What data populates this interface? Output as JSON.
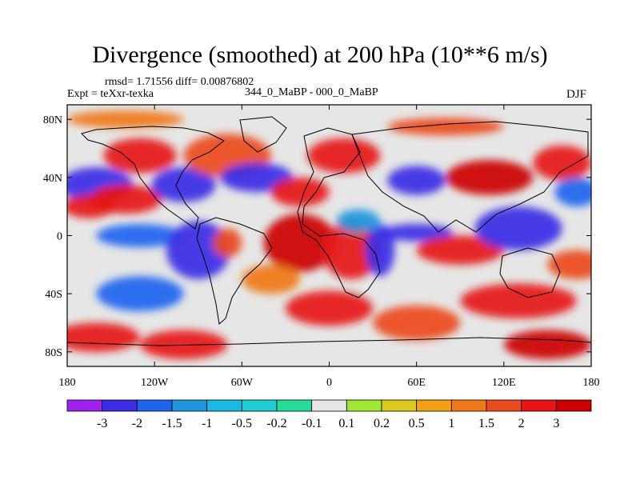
{
  "title": "Divergence (smoothed) at 200 hPa (10**6 m/s)",
  "stats_line": "rmsd= 1.71556 diff= 0.00876802",
  "experiment": "Expt = teXxr-texka",
  "comparison": "344_0_MaBP - 000_0_MaBP",
  "season": "DJF",
  "map": {
    "lat_range": [
      -90,
      90
    ],
    "lon_range": [
      -180,
      180
    ],
    "lat_ticks": [
      {
        "value": 80,
        "label": "80N"
      },
      {
        "value": 40,
        "label": "40N"
      },
      {
        "value": 0,
        "label": "0"
      },
      {
        "value": -40,
        "label": "40S"
      },
      {
        "value": -80,
        "label": "80S"
      }
    ],
    "lon_ticks": [
      {
        "value": -180,
        "label": "180"
      },
      {
        "value": -120,
        "label": "120W"
      },
      {
        "value": -60,
        "label": "60W"
      },
      {
        "value": 0,
        "label": "0"
      },
      {
        "value": 60,
        "label": "60E"
      },
      {
        "value": 120,
        "label": "120E"
      },
      {
        "value": 180,
        "label": "180"
      }
    ],
    "field_blobs": [
      {
        "lon": -160,
        "lat": 35,
        "v": -3,
        "rx": 25,
        "ry": 12
      },
      {
        "lon": -165,
        "lat": 20,
        "v": 2.5,
        "rx": 18,
        "ry": 8
      },
      {
        "lon": -130,
        "lat": 55,
        "v": 2.2,
        "rx": 25,
        "ry": 12
      },
      {
        "lon": -140,
        "lat": 25,
        "v": 2.5,
        "rx": 25,
        "ry": 10
      },
      {
        "lon": -100,
        "lat": 35,
        "v": -3,
        "rx": 22,
        "ry": 12
      },
      {
        "lon": -70,
        "lat": 55,
        "v": 1.8,
        "rx": 30,
        "ry": 15
      },
      {
        "lon": -50,
        "lat": 40,
        "v": -2.5,
        "rx": 25,
        "ry": 10
      },
      {
        "lon": -20,
        "lat": 30,
        "v": 2.5,
        "rx": 20,
        "ry": 10
      },
      {
        "lon": -130,
        "lat": 0,
        "v": -2,
        "rx": 30,
        "ry": 8
      },
      {
        "lon": -90,
        "lat": -10,
        "v": -3,
        "rx": 22,
        "ry": 20
      },
      {
        "lon": -70,
        "lat": -5,
        "v": 1.5,
        "rx": 10,
        "ry": 10
      },
      {
        "lon": -20,
        "lat": -5,
        "v": 3,
        "rx": 25,
        "ry": 20
      },
      {
        "lon": 15,
        "lat": -10,
        "v": 2.5,
        "rx": 20,
        "ry": 20
      },
      {
        "lon": 35,
        "lat": -10,
        "v": -3,
        "rx": 10,
        "ry": 18
      },
      {
        "lon": 60,
        "lat": 2,
        "v": -3,
        "rx": 25,
        "ry": 6
      },
      {
        "lon": 90,
        "lat": -10,
        "v": 2.2,
        "rx": 30,
        "ry": 10
      },
      {
        "lon": 130,
        "lat": 5,
        "v": -3,
        "rx": 30,
        "ry": 15
      },
      {
        "lon": 110,
        "lat": 40,
        "v": 3,
        "rx": 30,
        "ry": 12
      },
      {
        "lon": 160,
        "lat": 50,
        "v": 2.2,
        "rx": 20,
        "ry": 12
      },
      {
        "lon": 170,
        "lat": 30,
        "v": -2,
        "rx": 15,
        "ry": 10
      },
      {
        "lon": 60,
        "lat": 38,
        "v": -2.5,
        "rx": 20,
        "ry": 10
      },
      {
        "lon": 10,
        "lat": 55,
        "v": 2.5,
        "rx": 25,
        "ry": 12
      },
      {
        "lon": 130,
        "lat": -45,
        "v": 2.2,
        "rx": 40,
        "ry": 12
      },
      {
        "lon": -130,
        "lat": -40,
        "v": -2,
        "rx": 30,
        "ry": 12
      },
      {
        "lon": -160,
        "lat": -70,
        "v": 2,
        "rx": 30,
        "ry": 10
      },
      {
        "lon": -100,
        "lat": -75,
        "v": 2.5,
        "rx": 30,
        "ry": 10
      },
      {
        "lon": 0,
        "lat": -50,
        "v": 2,
        "rx": 30,
        "ry": 12
      },
      {
        "lon": 60,
        "lat": -60,
        "v": 1.5,
        "rx": 30,
        "ry": 12
      },
      {
        "lon": 150,
        "lat": -75,
        "v": 3,
        "rx": 30,
        "ry": 10
      },
      {
        "lon": 80,
        "lat": 75,
        "v": 1.5,
        "rx": 40,
        "ry": 6
      },
      {
        "lon": -140,
        "lat": 80,
        "v": 1,
        "rx": 40,
        "ry": 6
      },
      {
        "lon": 170,
        "lat": -20,
        "v": 1.5,
        "rx": 20,
        "ry": 10
      },
      {
        "lon": -40,
        "lat": -30,
        "v": 1.2,
        "rx": 20,
        "ry": 10
      },
      {
        "lon": 20,
        "lat": 10,
        "v": -1.5,
        "rx": 15,
        "ry": 8
      }
    ]
  },
  "colorbar": {
    "levels": [
      "-3",
      "-2",
      "-1.5",
      "-1",
      "-0.5",
      "-0.2",
      "-0.1",
      "0.1",
      "0.2",
      "0.5",
      "1",
      "1.5",
      "2",
      "3"
    ],
    "colors": [
      "#a020f0",
      "#3b2ce6",
      "#1e64f0",
      "#1e96dc",
      "#19b9e1",
      "#1ecdd2",
      "#26dc96",
      "#e6e6e6",
      "#a0e632",
      "#dcc81e",
      "#f5a014",
      "#f07819",
      "#eb4b1e",
      "#e61414",
      "#cc0000"
    ]
  }
}
